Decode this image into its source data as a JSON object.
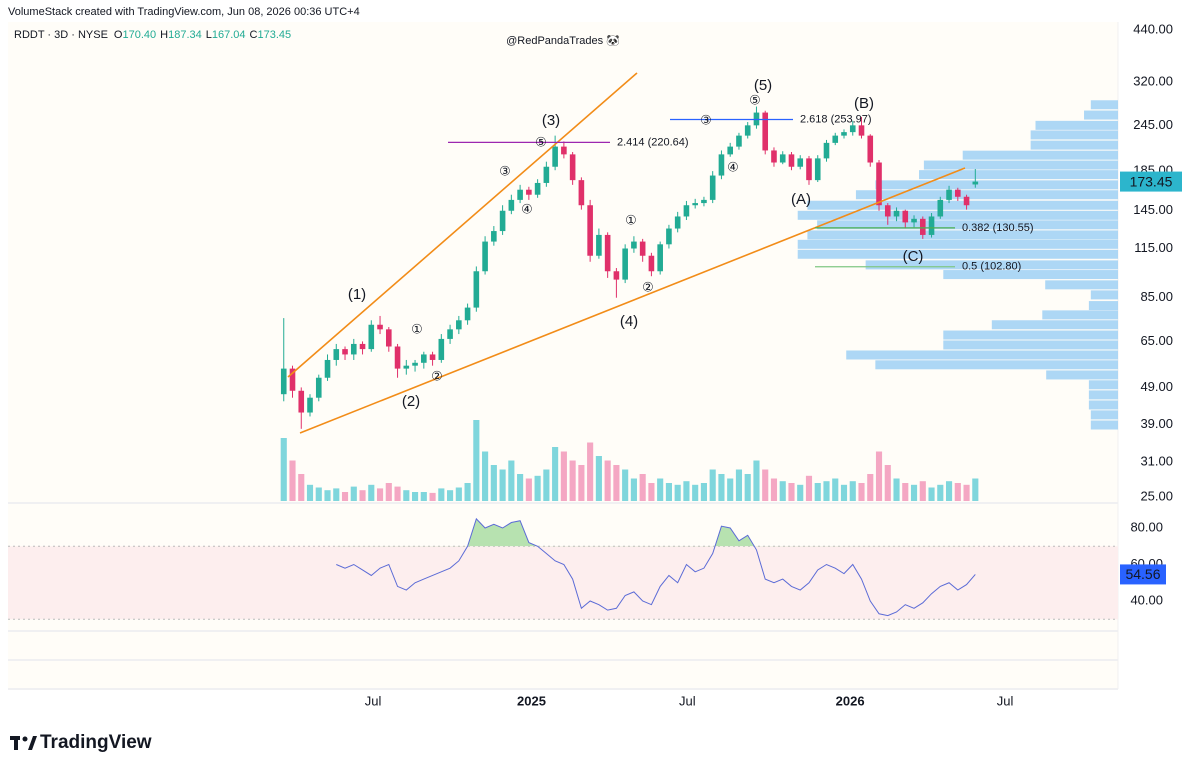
{
  "header": {
    "text": "VolumeStack created with TradingView.com, Jun 08, 2026 00:36 UTC+4"
  },
  "footer": {
    "brand": "TradingView"
  },
  "chart_data": [
    {
      "type": "candlestick",
      "symbol": "RDDT · 3D · NYSE",
      "ohlc_labels": [
        "O",
        "H",
        "L",
        "C"
      ],
      "last_labels": [
        "170.40",
        "187.34",
        "167.04",
        "173.45"
      ],
      "watermark": "@RedPandaTrades 🐼",
      "log_scale": true,
      "grid": false,
      "up_color": "#22ab94",
      "down_color": "#e0306a",
      "last_tag_color": "#2cb5cc",
      "xlim": [
        -31.5,
        95.3
      ],
      "xticks": [
        {
          "value": 10.2,
          "label": "Jul"
        },
        {
          "value": 28.3,
          "label": "2025"
        },
        {
          "value": 46.1,
          "label": "Jul"
        },
        {
          "value": 64.7,
          "label": "2026"
        },
        {
          "value": 82.4,
          "label": "Jul"
        }
      ],
      "ylim": [
        25,
        440
      ],
      "yticks": [
        {
          "value": 440,
          "label": "440.00"
        },
        {
          "value": 320,
          "label": "320.00"
        },
        {
          "value": 245,
          "label": "245.00"
        },
        {
          "value": 185,
          "label": "185.00"
        },
        {
          "value": 145,
          "label": "145.00"
        },
        {
          "value": 115,
          "label": "115.00"
        },
        {
          "value": 85,
          "label": "85.00"
        },
        {
          "value": 65,
          "label": "65.00"
        },
        {
          "value": 49,
          "label": "49.00"
        },
        {
          "value": 39,
          "label": "39.00"
        },
        {
          "value": 31,
          "label": "31.00"
        },
        {
          "value": 25,
          "label": "25.00"
        }
      ],
      "open": [
        47,
        55,
        48,
        42,
        46,
        52,
        58,
        62,
        60,
        64,
        62,
        72,
        70,
        63,
        55,
        56,
        57,
        60,
        58,
        66,
        70,
        74,
        80,
        100,
        120,
        128,
        145,
        155,
        165,
        160,
        172,
        190,
        215,
        205,
        175,
        150,
        110,
        125,
        100,
        95,
        115,
        120,
        110,
        100,
        118,
        130,
        140,
        150,
        152,
        155,
        180,
        205,
        215,
        230,
        245,
        265,
        210,
        195,
        205,
        190,
        200,
        175,
        200,
        220,
        230,
        235,
        245,
        230,
        195,
        150,
        140,
        145,
        135,
        138,
        125,
        140,
        155,
        165,
        158,
        170.4
      ],
      "high": [
        75,
        56,
        49,
        47,
        53,
        60,
        64,
        63,
        66,
        65,
        74,
        76,
        71,
        64,
        58,
        58,
        61,
        61,
        68,
        72,
        76,
        82,
        103,
        124,
        132,
        150,
        160,
        170,
        168,
        176,
        196,
        230,
        222,
        208,
        178,
        155,
        130,
        127,
        102,
        118,
        124,
        122,
        112,
        120,
        133,
        144,
        154,
        156,
        158,
        185,
        210,
        220,
        234,
        250,
        275,
        268,
        214,
        209,
        208,
        204,
        203,
        204,
        224,
        234,
        239,
        252,
        258,
        232,
        198,
        152,
        148,
        146,
        141,
        140,
        143,
        158,
        169,
        167,
        160,
        187.34
      ],
      "low": [
        45,
        46,
        38,
        41,
        45,
        51,
        56,
        58,
        58,
        60,
        61,
        68,
        61,
        52,
        53,
        54,
        55,
        56,
        57,
        64,
        68,
        72,
        78,
        98,
        117,
        125,
        142,
        152,
        155,
        157,
        168,
        186,
        200,
        170,
        146,
        106,
        108,
        96,
        85,
        93,
        112,
        106,
        97,
        98,
        115,
        127,
        137,
        147,
        149,
        152,
        176,
        202,
        211,
        226,
        240,
        205,
        190,
        193,
        186,
        187,
        170,
        173,
        196,
        217,
        226,
        230,
        226,
        190,
        145,
        133,
        136,
        130,
        131,
        122,
        123,
        138,
        152,
        154,
        146,
        167.04
      ],
      "close": [
        55,
        48,
        42,
        46,
        52,
        58,
        62,
        60,
        64,
        62,
        72,
        70,
        63,
        55,
        56,
        57,
        60,
        58,
        66,
        70,
        74,
        80,
        100,
        120,
        128,
        145,
        155,
        165,
        160,
        172,
        190,
        215,
        205,
        175,
        150,
        110,
        125,
        100,
        95,
        115,
        120,
        110,
        100,
        118,
        130,
        140,
        150,
        152,
        155,
        180,
        205,
        215,
        230,
        245,
        265,
        210,
        195,
        205,
        190,
        200,
        175,
        200,
        220,
        230,
        235,
        245,
        230,
        195,
        150,
        140,
        145,
        135,
        138,
        125,
        140,
        155,
        165,
        158,
        150,
        173.45
      ],
      "fib_levels": [
        {
          "label": "2.414 (220.64)",
          "value": 220.64,
          "color": "#9c27b0"
        },
        {
          "label": "2.618 (253.97)",
          "value": 253.97,
          "color": "#2962ff"
        },
        {
          "label": "0.382 (130.55)",
          "value": 130.55,
          "color": "#4caf50"
        },
        {
          "label": "0.5 (102.80)",
          "value": 102.8,
          "color": "#81c784"
        }
      ],
      "annotations": [
        {
          "text": "(1)",
          "color": "#3b1f8a"
        },
        {
          "text": "(2)",
          "color": "#3b1f8a"
        },
        {
          "text": "(3)",
          "color": "#3b1f8a"
        },
        {
          "text": "(4)",
          "color": "#3b1f8a"
        },
        {
          "text": "(5)",
          "color": "#3b1f8a"
        },
        {
          "text": "(A)",
          "color": "#9b3fbf"
        },
        {
          "text": "(B)",
          "color": "#8e24aa"
        },
        {
          "text": "(C)",
          "color": "#5e4fc0"
        },
        {
          "text": "①",
          "color": "#555555"
        },
        {
          "text": "②",
          "color": "#555555"
        },
        {
          "text": "③",
          "color": "#555555"
        },
        {
          "text": "④",
          "color": "#555555"
        },
        {
          "text": "⑤",
          "color": "#555555"
        },
        {
          "text": "①",
          "color": "#555555"
        },
        {
          "text": "②",
          "color": "#555555"
        },
        {
          "text": "③",
          "color": "#555555"
        },
        {
          "text": "④",
          "color": "#555555"
        },
        {
          "text": "⑤",
          "color": "#555555"
        }
      ],
      "volume_profile": {
        "color": "#9fd0f5",
        "xlim": [
          0,
          340
        ],
        "levels": [
          278,
          261,
          245,
          231,
          217,
          204,
          192,
          181,
          170,
          160,
          150,
          141,
          133,
          125,
          118,
          111,
          104,
          98,
          92,
          86.5,
          81,
          76.5,
          72,
          67.6,
          63.6,
          59.8,
          56.3,
          52.9,
          49.8,
          46.8,
          44,
          41.4,
          38.9
        ],
        "values": [
          28,
          35,
          85,
          90,
          90,
          160,
          200,
          205,
          250,
          270,
          320,
          330,
          310,
          320,
          330,
          330,
          260,
          180,
          75,
          28,
          30,
          78,
          130,
          180,
          180,
          280,
          250,
          74,
          30,
          30,
          30,
          28,
          28
        ]
      }
    },
    {
      "type": "bar",
      "up_color": "#7fd6dc",
      "down_color": "#f4a7c3",
      "ylim": [
        0,
        100
      ],
      "values": [
        70,
        45,
        30,
        18,
        15,
        12,
        14,
        10,
        16,
        12,
        18,
        14,
        20,
        16,
        12,
        10,
        10,
        9,
        14,
        12,
        15,
        20,
        90,
        55,
        40,
        35,
        45,
        30,
        25,
        28,
        35,
        60,
        55,
        45,
        40,
        65,
        50,
        45,
        40,
        35,
        25,
        30,
        20,
        25,
        20,
        18,
        22,
        18,
        20,
        35,
        30,
        25,
        35,
        30,
        45,
        35,
        25,
        22,
        20,
        18,
        28,
        20,
        22,
        25,
        18,
        22,
        20,
        30,
        55,
        40,
        25,
        20,
        18,
        22,
        15,
        18,
        22,
        20,
        18,
        25
      ]
    },
    {
      "type": "line",
      "color": "#5b6bd6",
      "overbought_color": "#b7e2b0",
      "tag_color": "#2962ff",
      "band_color": "#fdeeee",
      "bands": [
        30,
        70
      ],
      "ylim": [
        0,
        100
      ],
      "yticks": [
        {
          "value": 80,
          "label": "80.00"
        },
        {
          "value": 60,
          "label": "60.00"
        },
        {
          "value": 40,
          "label": "40.00"
        }
      ],
      "values": [
        null,
        null,
        null,
        null,
        null,
        null,
        60,
        58,
        60,
        57,
        54,
        58,
        60,
        48,
        46,
        50,
        52,
        54,
        56,
        58,
        62,
        70,
        85,
        80,
        82,
        80,
        83,
        84,
        72,
        70,
        66,
        62,
        60,
        52,
        36,
        40,
        38,
        35,
        36,
        43,
        45,
        40,
        38,
        48,
        54,
        50,
        60,
        56,
        58,
        66,
        81,
        80,
        73,
        76,
        68,
        52,
        50,
        52,
        48,
        46,
        50,
        57,
        60,
        58,
        55,
        60,
        52,
        40,
        33,
        32,
        34,
        38,
        36,
        39,
        44,
        48,
        50,
        46,
        49,
        54.56
      ]
    }
  ]
}
